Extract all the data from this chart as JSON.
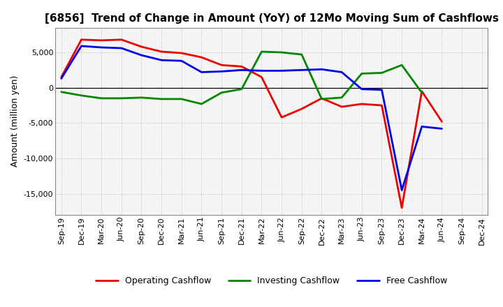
{
  "title": "[6856]  Trend of Change in Amount (YoY) of 12Mo Moving Sum of Cashflows",
  "ylabel": "Amount (million yen)",
  "x_labels": [
    "Sep-19",
    "Dec-19",
    "Mar-20",
    "Jun-20",
    "Sep-20",
    "Dec-20",
    "Mar-21",
    "Jun-21",
    "Sep-21",
    "Dec-21",
    "Mar-22",
    "Jun-22",
    "Sep-22",
    "Dec-22",
    "Mar-23",
    "Jun-23",
    "Sep-23",
    "Dec-23",
    "Mar-24",
    "Jun-24",
    "Sep-24",
    "Dec-24"
  ],
  "operating": [
    1500,
    6800,
    6700,
    6800,
    5800,
    5100,
    4900,
    4300,
    3200,
    3000,
    1500,
    -4200,
    -3000,
    -1500,
    -2700,
    -2300,
    -2500,
    -17000,
    -500,
    -4800,
    null,
    null
  ],
  "investing": [
    -600,
    -1100,
    -1500,
    -1500,
    -1400,
    -1600,
    -1600,
    -2300,
    -700,
    -200,
    5100,
    5000,
    4700,
    -1600,
    -1400,
    2000,
    2100,
    3200,
    -700,
    null,
    null,
    null
  ],
  "free": [
    1300,
    5900,
    5700,
    5600,
    4600,
    3900,
    3800,
    2200,
    2300,
    2500,
    2400,
    2400,
    2500,
    2600,
    2200,
    -200,
    -300,
    -14500,
    -5500,
    -5800,
    null,
    null
  ],
  "ylim": [
    -18000,
    8500
  ],
  "ytick_min": -15000,
  "ytick_max": 5000,
  "ytick_step": 5000,
  "operating_color": "#ee0000",
  "investing_color": "#008800",
  "free_color": "#0000ee",
  "bg_color": "#ffffff",
  "plot_bg_color": "#f5f5f5",
  "grid_color": "#bbbbbb",
  "line_width": 2.0,
  "title_fontsize": 11,
  "tick_fontsize": 8,
  "ylabel_fontsize": 9,
  "legend_fontsize": 9
}
